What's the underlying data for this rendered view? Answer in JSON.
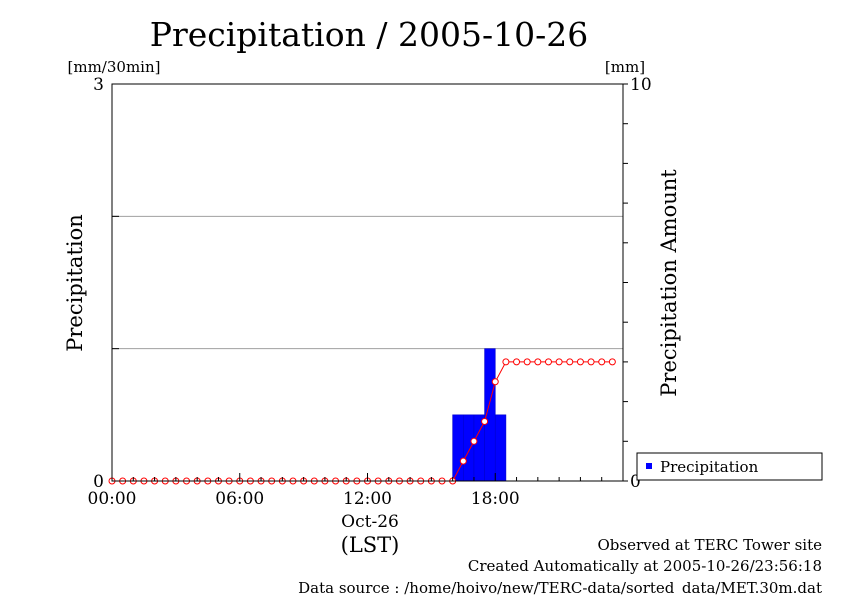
{
  "chart_data": {
    "type": "bar",
    "title": "Precipitation / 2005-10-26",
    "left_axis": {
      "label": "Precipitation",
      "unit": "[mm/30min]",
      "range": [
        0,
        3
      ],
      "ticks": [
        "0",
        "3"
      ]
    },
    "right_axis": {
      "label": "Precipitation Amount",
      "unit": "[mm]",
      "range": [
        0,
        10
      ],
      "ticks": [
        "0",
        "10"
      ]
    },
    "x_axis": {
      "ticks": [
        "00:00",
        "06:00",
        "12:00",
        "18:00"
      ],
      "date_label": "Oct-26",
      "zone_label": "(LST)",
      "range_hours": [
        0,
        24
      ]
    },
    "grid": true,
    "legend": {
      "position": "bottom-right-outside",
      "entries": [
        "Precipitation"
      ]
    },
    "colors": {
      "bars": "#0000ff",
      "line": "#ff0000"
    },
    "series": [
      {
        "name": "Precipitation",
        "kind": "bar",
        "axis": "left",
        "bin_hours": 0.5,
        "points": [
          {
            "start": 16.0,
            "value": 0.5
          },
          {
            "start": 16.5,
            "value": 0.5
          },
          {
            "start": 17.0,
            "value": 0.5
          },
          {
            "start": 17.5,
            "value": 1.0
          },
          {
            "start": 18.0,
            "value": 0.5
          }
        ]
      },
      {
        "kind": "line",
        "axis": "right",
        "x": [
          0,
          0.5,
          1,
          1.5,
          2,
          2.5,
          3,
          3.5,
          4,
          4.5,
          5,
          5.5,
          6,
          6.5,
          7,
          7.5,
          8,
          8.5,
          9,
          9.5,
          10,
          10.5,
          11,
          11.5,
          12,
          12.5,
          13,
          13.5,
          14,
          14.5,
          15,
          15.5,
          16,
          16.5,
          17,
          17.5,
          18,
          18.5,
          19,
          19.5,
          20,
          20.5,
          21,
          21.5,
          22,
          22.5,
          23,
          23.5
        ],
        "y": [
          0,
          0,
          0,
          0,
          0,
          0,
          0,
          0,
          0,
          0,
          0,
          0,
          0,
          0,
          0,
          0,
          0,
          0,
          0,
          0,
          0,
          0,
          0,
          0,
          0,
          0,
          0,
          0,
          0,
          0,
          0,
          0,
          0,
          0.5,
          1.0,
          1.5,
          2.5,
          3.0,
          3.0,
          3.0,
          3.0,
          3.0,
          3.0,
          3.0,
          3.0,
          3.0,
          3.0,
          3.0
        ]
      }
    ]
  },
  "footer": {
    "site": "Observed at TERC Tower site",
    "created": "Created Automatically at 2005-10-26/23:56:18",
    "source": "Data source : /home/hoivo/new/TERC-data/sorted_data/MET.30m.dat"
  }
}
